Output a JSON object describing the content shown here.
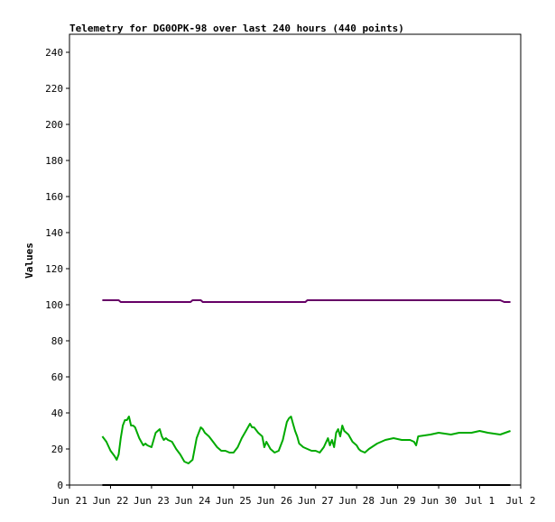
{
  "chart_data": {
    "type": "line",
    "title": "Telemetry for DG0OPK-98 over last 240 hours (440 points)",
    "xlabel": "",
    "ylabel": "Values",
    "x_ticks": [
      "Jun 21",
      "Jun 22",
      "Jun 23",
      "Jun 24",
      "Jun 25",
      "Jun 26",
      "Jun 27",
      "Jun 28",
      "Jun 29",
      "Jun 30",
      "Jul 1",
      "Jul 2"
    ],
    "ylim": [
      0,
      250
    ],
    "y_ticks": [
      0,
      20,
      40,
      60,
      80,
      100,
      120,
      140,
      160,
      180,
      200,
      220,
      240
    ],
    "grid": false,
    "legend": "none",
    "series": [
      {
        "color": "#660066",
        "x": [
          21.8,
          22.2,
          22.25,
          22.5,
          23.0,
          23.5,
          23.95,
          24.0,
          24.2,
          24.25,
          24.5,
          25.0,
          25.5,
          25.7,
          26.0,
          26.2,
          26.5,
          26.75,
          26.8,
          27.0,
          27.5,
          28.0,
          28.5,
          29.0,
          29.5,
          30.0,
          30.5,
          31.0,
          31.5,
          31.6,
          31.75
        ],
        "values": [
          102.5,
          102.5,
          101.5,
          101.5,
          101.5,
          101.5,
          101.5,
          102.5,
          102.5,
          101.5,
          101.5,
          101.5,
          101.5,
          101.5,
          101.5,
          101.5,
          101.5,
          101.5,
          102.5,
          102.5,
          102.5,
          102.5,
          102.5,
          102.5,
          102.5,
          102.5,
          102.5,
          102.5,
          102.5,
          101.5,
          101.5
        ]
      },
      {
        "color": "#00aa00",
        "x": [
          21.8,
          21.9,
          22.0,
          22.1,
          22.15,
          22.2,
          22.25,
          22.3,
          22.35,
          22.4,
          22.45,
          22.5,
          22.55,
          22.6,
          22.7,
          22.75,
          22.8,
          22.85,
          22.9,
          23.0,
          23.05,
          23.1,
          23.2,
          23.25,
          23.3,
          23.35,
          23.4,
          23.5,
          23.6,
          23.7,
          23.8,
          23.9,
          24.0,
          24.1,
          24.2,
          24.25,
          24.3,
          24.4,
          24.5,
          24.6,
          24.7,
          24.8,
          24.9,
          25.0,
          25.1,
          25.2,
          25.3,
          25.4,
          25.45,
          25.5,
          25.6,
          25.7,
          25.75,
          25.8,
          25.9,
          26.0,
          26.1,
          26.2,
          26.3,
          26.35,
          26.4,
          26.45,
          26.5,
          26.55,
          26.6,
          26.7,
          26.8,
          26.9,
          27.0,
          27.1,
          27.2,
          27.3,
          27.35,
          27.4,
          27.45,
          27.5,
          27.55,
          27.6,
          27.65,
          27.7,
          27.8,
          27.9,
          28.0,
          28.05,
          28.1,
          28.2,
          28.3,
          28.5,
          28.7,
          28.9,
          29.1,
          29.3,
          29.4,
          29.45,
          29.5,
          29.8,
          30.0,
          30.3,
          30.5,
          30.8,
          31.0,
          31.2,
          31.5,
          31.75
        ],
        "values": [
          27,
          24,
          19,
          16,
          14,
          17,
          26,
          33,
          36,
          36,
          38,
          33,
          33,
          32,
          26,
          24,
          22,
          23,
          22,
          21,
          25,
          29,
          31,
          27,
          25,
          26,
          25,
          24,
          20,
          17,
          13,
          12,
          14,
          26,
          32,
          31,
          29,
          27,
          24,
          21,
          19,
          19,
          18,
          18,
          21,
          26,
          30,
          34,
          32,
          32,
          29,
          27,
          21,
          24,
          20,
          18,
          19,
          25,
          35,
          37,
          38,
          34,
          30,
          27,
          23,
          21,
          20,
          19,
          19,
          18,
          21,
          26,
          22,
          25,
          21,
          29,
          31,
          27,
          33,
          30,
          28,
          24,
          22,
          20,
          19,
          18,
          20,
          23,
          25,
          26,
          25,
          25,
          24,
          22,
          27,
          28,
          29,
          28,
          29,
          29,
          30,
          29,
          28,
          30
        ]
      },
      {
        "color": "#000000",
        "x": [
          21.8,
          31.75
        ],
        "values": [
          0,
          0
        ]
      }
    ]
  }
}
